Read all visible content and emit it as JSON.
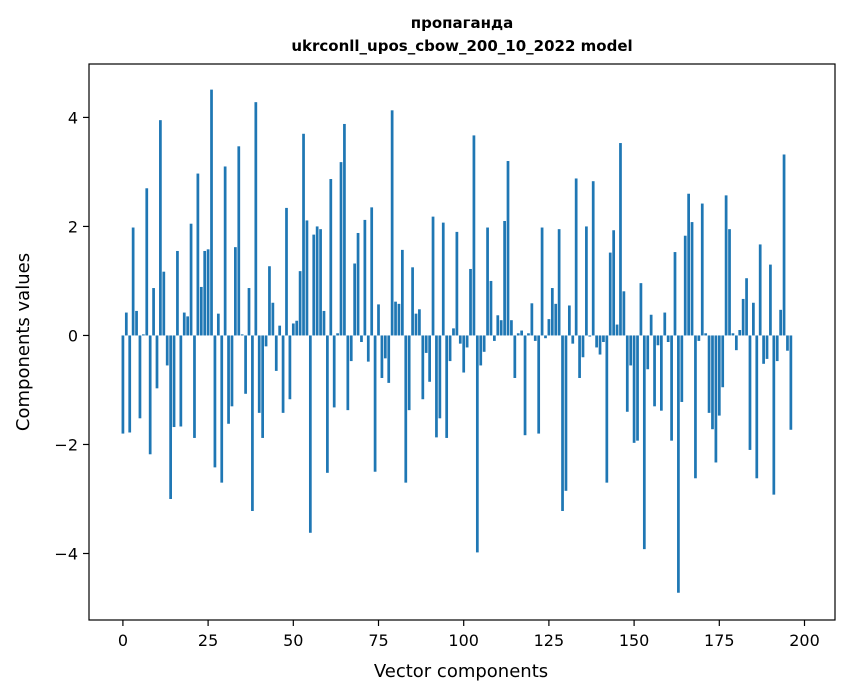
{
  "chart_data": {
    "type": "bar",
    "title_line1": "пропаганда",
    "title_line2": "ukrconll_upos_cbow_200_10_2022 model",
    "xlabel": "Vector components",
    "ylabel": "Components values",
    "xlim": [
      -9.95,
      208.95
    ],
    "ylim": [
      -5.22,
      4.98
    ],
    "xticks": [
      0,
      25,
      50,
      75,
      100,
      125,
      150,
      175,
      200
    ],
    "yticks": [
      -4,
      -2,
      0,
      2,
      4
    ],
    "ytick_labels": [
      "−4",
      "−2",
      "0",
      "2",
      "4"
    ],
    "bar_color": "#1f77b4",
    "grid": false,
    "values": [
      -1.8,
      0.42,
      -1.78,
      1.98,
      0.45,
      -1.52,
      0.02,
      2.7,
      -2.18,
      0.87,
      -0.97,
      3.95,
      1.17,
      -0.55,
      -3.0,
      -1.68,
      1.55,
      -1.67,
      0.42,
      0.35,
      2.05,
      -1.88,
      2.97,
      0.89,
      1.55,
      1.58,
      4.51,
      -2.42,
      0.4,
      -2.7,
      3.1,
      -1.62,
      -1.3,
      1.62,
      3.47,
      0.02,
      -1.07,
      0.87,
      -3.22,
      4.28,
      -1.42,
      -1.88,
      -0.2,
      1.27,
      0.6,
      -0.65,
      0.18,
      -1.42,
      2.34,
      -1.17,
      0.22,
      0.27,
      1.18,
      3.7,
      2.11,
      -3.62,
      1.85,
      2.0,
      1.95,
      0.45,
      -2.52,
      2.87,
      -1.32,
      0.04,
      3.18,
      3.88,
      -1.37,
      -0.47,
      1.32,
      1.88,
      -0.12,
      2.12,
      -0.48,
      2.35,
      -2.5,
      0.57,
      -0.78,
      -0.42,
      -0.87,
      4.13,
      0.62,
      0.58,
      1.57,
      -2.7,
      -1.37,
      1.25,
      0.4,
      0.48,
      -1.17,
      -0.32,
      -0.85,
      2.18,
      -1.87,
      -1.52,
      2.07,
      -1.88,
      -0.47,
      0.13,
      1.9,
      -0.15,
      -0.68,
      -0.22,
      1.22,
      3.67,
      -3.98,
      -0.55,
      -0.3,
      1.98,
      1.0,
      -0.1,
      0.37,
      0.28,
      2.1,
      3.2,
      0.28,
      -0.78,
      0.04,
      0.09,
      -1.83,
      0.04,
      0.59,
      -0.1,
      -1.8,
      1.98,
      -0.05,
      0.3,
      0.87,
      0.58,
      1.95,
      -3.22,
      -2.85,
      0.55,
      -0.15,
      2.88,
      -0.78,
      -0.4,
      2.0,
      -0.02,
      2.83,
      -0.22,
      -0.35,
      -0.12,
      -2.7,
      1.52,
      1.93,
      0.2,
      3.53,
      0.81,
      -1.4,
      -0.55,
      -1.97,
      -1.93,
      0.96,
      -3.92,
      -0.62,
      0.38,
      -1.3,
      -0.18,
      -1.38,
      0.42,
      -0.12,
      -1.93,
      1.53,
      -4.72,
      -1.22,
      1.83,
      2.6,
      2.08,
      -2.62,
      -0.1,
      2.42,
      0.04,
      -1.42,
      -1.72,
      -2.33,
      -1.47,
      -0.95,
      2.57,
      1.95,
      0.04,
      -0.27,
      0.1,
      0.67,
      1.05,
      -2.1,
      0.6,
      -2.62,
      1.67,
      -0.52,
      -0.43,
      1.3,
      -2.92,
      -0.47,
      0.47,
      3.32,
      -0.28,
      -1.73
    ]
  }
}
